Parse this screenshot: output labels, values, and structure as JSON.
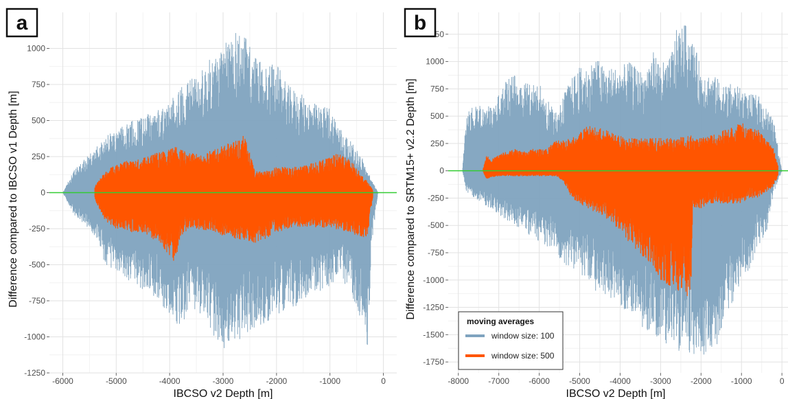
{
  "panels": {
    "a": {
      "label": "a"
    },
    "b": {
      "label": "b"
    }
  },
  "colors": {
    "window100": "#7fa3bf",
    "window500": "#ff5500",
    "zero_line": "#33cc33",
    "grid_major": "#e2e2e2",
    "grid_minor": "#f2f2f2",
    "axis_text": "#4d4d4d"
  },
  "legend": {
    "title": "moving averages",
    "items": [
      {
        "label": "window size: 100",
        "color": "#7fa3bf"
      },
      {
        "label": "window size: 500",
        "color": "#ff5500"
      }
    ]
  },
  "chart_data": [
    {
      "id": "a",
      "type": "line",
      "xlabel": "IBCSO v2 Depth [m]",
      "ylabel": "Difference compared to IBCSO v1 Depth [m]",
      "xlim": [
        -6250,
        250
      ],
      "ylim": [
        -1250,
        1250
      ],
      "xticks": [
        -6000,
        -5000,
        -4000,
        -3000,
        -2000,
        -1000,
        0
      ],
      "yticks": [
        -1250,
        -1000,
        -750,
        -500,
        -250,
        0,
        250,
        500,
        750,
        1000
      ],
      "xtick_labels": [
        "-6000",
        "-5000",
        "-4000",
        "-3000",
        "-2000",
        "-1000",
        "0"
      ],
      "ytick_labels": [
        "-1250",
        "-1000",
        "-750",
        "-500",
        "-250",
        "0",
        "250",
        "500",
        "750",
        "1000"
      ],
      "reference_line_y": 0,
      "grid": true,
      "series": [
        {
          "name": "window size: 100",
          "x": [
            -6000,
            -5800,
            -5600,
            -5400,
            -5200,
            -5000,
            -4800,
            -4600,
            -4400,
            -4200,
            -4000,
            -3800,
            -3600,
            -3400,
            -3200,
            -3000,
            -2800,
            -2600,
            -2400,
            -2200,
            -2000,
            -1800,
            -1600,
            -1400,
            -1200,
            -1000,
            -800,
            -600,
            -400,
            -300,
            -200,
            -100
          ],
          "upper": [
            0,
            150,
            230,
            300,
            400,
            430,
            480,
            520,
            560,
            600,
            620,
            750,
            800,
            850,
            950,
            1000,
            1150,
            1100,
            950,
            900,
            900,
            750,
            700,
            650,
            600,
            600,
            450,
            350,
            250,
            150,
            80,
            0
          ],
          "lower": [
            0,
            -150,
            -220,
            -300,
            -500,
            -550,
            -600,
            -650,
            -700,
            -750,
            -850,
            -950,
            -800,
            -850,
            -1000,
            -1100,
            -1050,
            -1000,
            -950,
            -900,
            -850,
            -800,
            -800,
            -700,
            -700,
            -650,
            -600,
            -700,
            -900,
            -1100,
            -300,
            0
          ]
        },
        {
          "name": "window size: 500",
          "x": [
            -5400,
            -5200,
            -5000,
            -4800,
            -4600,
            -4400,
            -4200,
            -4000,
            -3900,
            -3800,
            -3600,
            -3400,
            -3200,
            -3000,
            -2800,
            -2600,
            -2400,
            -2200,
            -2000,
            -1800,
            -1600,
            -1400,
            -1200,
            -1000,
            -800,
            -600,
            -400,
            -300,
            -200
          ],
          "upper": [
            50,
            150,
            200,
            220,
            230,
            260,
            280,
            300,
            320,
            300,
            280,
            260,
            300,
            330,
            360,
            400,
            150,
            150,
            180,
            180,
            180,
            200,
            220,
            250,
            280,
            220,
            120,
            80,
            20
          ],
          "lower": [
            -50,
            -200,
            -250,
            -270,
            -280,
            -300,
            -350,
            -450,
            -500,
            -300,
            -250,
            -260,
            -270,
            -300,
            -320,
            -330,
            -350,
            -320,
            -280,
            -250,
            -240,
            -240,
            -240,
            -250,
            -260,
            -280,
            -320,
            -300,
            -50
          ]
        }
      ]
    },
    {
      "id": "b",
      "type": "line",
      "xlabel": "IBCSO v2 Depth [m]",
      "ylabel": "Difference compared to SRTM15+ v2.2 Depth [m]",
      "xlim": [
        -8250,
        150
      ],
      "ylim": [
        -1850,
        1450
      ],
      "xticks": [
        -8000,
        -7000,
        -6000,
        -5000,
        -4000,
        -3000,
        -2000,
        -1000,
        0
      ],
      "yticks": [
        -1750,
        -1500,
        -1250,
        -1000,
        -750,
        -500,
        -250,
        0,
        250,
        500,
        750,
        1000,
        1250
      ],
      "xtick_labels": [
        "-8000",
        "-7000",
        "-6000",
        "-5000",
        "-4000",
        "-3000",
        "-2000",
        "-1000",
        "0"
      ],
      "ytick_labels": [
        "-1750",
        "-1500",
        "-1250",
        "-1000",
        "-750",
        "-500",
        "-250",
        "0",
        "250",
        "500",
        "750",
        "1000",
        "1250"
      ],
      "reference_line_y": 0,
      "grid": true,
      "series": [
        {
          "name": "window size: 100",
          "x": [
            -7900,
            -7800,
            -7600,
            -7400,
            -7200,
            -7000,
            -6800,
            -6600,
            -6400,
            -6200,
            -6000,
            -5800,
            -5600,
            -5400,
            -5200,
            -5000,
            -4800,
            -4600,
            -4400,
            -4200,
            -4000,
            -3800,
            -3600,
            -3400,
            -3200,
            -3000,
            -2800,
            -2600,
            -2400,
            -2200,
            -2000,
            -1800,
            -1600,
            -1400,
            -1200,
            -1000,
            -800,
            -600,
            -400,
            -200,
            0
          ],
          "upper": [
            0,
            550,
            600,
            600,
            600,
            700,
            850,
            900,
            800,
            800,
            800,
            650,
            550,
            700,
            850,
            950,
            950,
            1050,
            950,
            950,
            950,
            1000,
            950,
            900,
            1100,
            1000,
            1000,
            1300,
            1350,
            1200,
            950,
            900,
            850,
            800,
            800,
            750,
            700,
            700,
            600,
            450,
            0
          ],
          "lower": [
            0,
            -200,
            -250,
            -300,
            -350,
            -400,
            -450,
            -500,
            -550,
            -600,
            -650,
            -700,
            -750,
            -850,
            -900,
            -950,
            -1000,
            -1100,
            -1150,
            -1200,
            -1250,
            -1300,
            -1400,
            -1450,
            -1500,
            -1550,
            -1600,
            -1650,
            -1700,
            -1700,
            -1700,
            -1650,
            -1600,
            -1300,
            -1200,
            -1000,
            -900,
            -700,
            -600,
            -200,
            0
          ]
        },
        {
          "name": "window size: 500",
          "x": [
            -7400,
            -7300,
            -7200,
            -7000,
            -6800,
            -6600,
            -6400,
            -6200,
            -6000,
            -5800,
            -5600,
            -5400,
            -5200,
            -5000,
            -4800,
            -4600,
            -4400,
            -4200,
            -4000,
            -3800,
            -3600,
            -3400,
            -3200,
            -3000,
            -2800,
            -2600,
            -2400,
            -2250,
            -2200,
            -2000,
            -1800,
            -1600,
            -1400,
            -1200,
            -1000,
            -800,
            -600,
            -400,
            -200,
            -100
          ],
          "upper": [
            0,
            150,
            100,
            150,
            180,
            200,
            180,
            200,
            200,
            200,
            280,
            280,
            300,
            350,
            420,
            400,
            380,
            350,
            320,
            300,
            300,
            300,
            300,
            300,
            300,
            300,
            320,
            330,
            300,
            300,
            320,
            340,
            380,
            400,
            450,
            400,
            380,
            300,
            200,
            50
          ],
          "lower": [
            0,
            -80,
            -60,
            -50,
            -50,
            -50,
            -50,
            -50,
            -50,
            -50,
            -50,
            -100,
            -250,
            -300,
            -350,
            -380,
            -420,
            -480,
            -550,
            -650,
            -750,
            -800,
            -900,
            -1000,
            -1050,
            -1100,
            -1150,
            -1150,
            -350,
            -350,
            -300,
            -300,
            -300,
            -300,
            -300,
            -250,
            -250,
            -200,
            -150,
            -50
          ]
        }
      ]
    }
  ]
}
